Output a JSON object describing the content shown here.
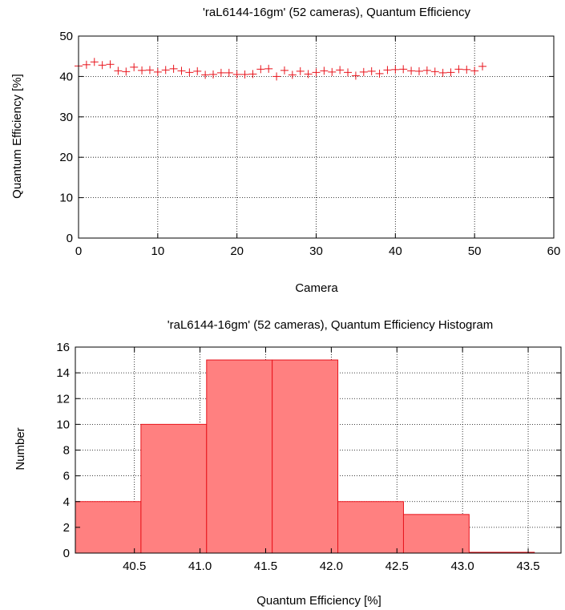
{
  "chart_data": [
    {
      "type": "scatter",
      "title": "'raL6144-16gm' (52 cameras), Quantum Efficiency",
      "xlabel": "Camera",
      "ylabel": "Quantum Efficiency [%]",
      "xlim": [
        0,
        60
      ],
      "ylim": [
        0,
        50
      ],
      "x_ticks": [
        0,
        10,
        20,
        30,
        40,
        50,
        60
      ],
      "y_ticks": [
        0,
        10,
        20,
        30,
        40,
        50
      ],
      "grid": true,
      "marker": "plus",
      "color": "#e8141c",
      "x": [
        0,
        1,
        2,
        3,
        4,
        5,
        6,
        7,
        8,
        9,
        10,
        11,
        12,
        13,
        14,
        15,
        16,
        17,
        18,
        19,
        20,
        21,
        22,
        23,
        24,
        25,
        26,
        27,
        28,
        29,
        30,
        31,
        32,
        33,
        34,
        35,
        36,
        37,
        38,
        39,
        40,
        41,
        42,
        43,
        44,
        45,
        46,
        47,
        48,
        49,
        50,
        51
      ],
      "y": [
        42.6,
        42.9,
        43.6,
        42.8,
        43.0,
        41.4,
        41.2,
        42.3,
        41.5,
        41.6,
        41.1,
        41.6,
        41.9,
        41.4,
        41.0,
        41.3,
        40.4,
        40.5,
        40.9,
        40.9,
        40.5,
        40.5,
        40.6,
        41.8,
        41.9,
        40.0,
        41.5,
        40.4,
        41.3,
        40.6,
        41.0,
        41.4,
        41.1,
        41.6,
        41.0,
        40.2,
        41.1,
        41.3,
        40.7,
        41.6,
        41.7,
        41.8,
        41.4,
        41.3,
        41.5,
        41.2,
        40.9,
        41.0,
        41.8,
        41.7,
        41.4,
        42.5
      ]
    },
    {
      "type": "bar",
      "title": "'raL6144-16gm' (52 cameras), Quantum Efficiency Histogram",
      "xlabel": "Quantum Efficiency [%]",
      "ylabel": "Number",
      "xlim": [
        40.05,
        43.75
      ],
      "ylim": [
        0,
        16
      ],
      "x_ticks": [
        "40.5",
        "41.0",
        "41.5",
        "42.0",
        "42.5",
        "43.0",
        "43.5"
      ],
      "y_ticks": [
        0,
        2,
        4,
        6,
        8,
        10,
        12,
        14,
        16
      ],
      "grid": true,
      "fill_color": "#ff8080",
      "edge_color": "#e8141c",
      "bin_edges": [
        40.05,
        40.55,
        41.05,
        41.55,
        42.05,
        42.55,
        43.05,
        43.55
      ],
      "values": [
        4,
        10,
        15,
        15,
        4,
        3,
        0
      ]
    }
  ]
}
